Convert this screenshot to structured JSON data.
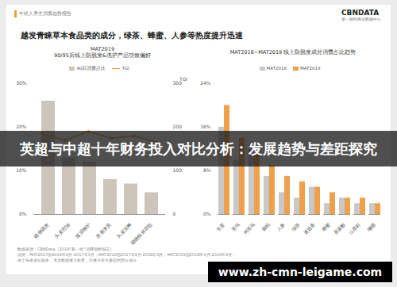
{
  "header": {
    "report": "年轻人养生消费趋势报告",
    "logo": "CBNDATA",
    "logo_sub": "第一财经商业数据中心"
  },
  "heading": "越发青睐草本食品类的成分，绿茶、蜂蜜、人参等热度提升迅速",
  "chart_data": [
    {
      "type": "bar",
      "title": "MAT2019",
      "subtitle": "90/95后线上防脱发&洗护产品功效偏好",
      "categories": [
        "植物固发",
        "头皮控油",
        "滋润修护",
        "改善发质",
        "头皮清爽",
        "植物精粹萃取"
      ],
      "series": [
        {
          "name": "90后消费占比",
          "type": "bar",
          "color": "#cdc5b9",
          "values": [
            26,
            13,
            12,
            8,
            7,
            5
          ]
        },
        {
          "name": "TGI",
          "type": "line",
          "axis": "y2",
          "color": "#e9a03b",
          "marker": "circle",
          "values": [
            185,
            170,
            190,
            175,
            180,
            165
          ]
        }
      ],
      "ylim": [
        0,
        30
      ],
      "yticks": [
        {
          "value": 0,
          "label": "0%"
        },
        {
          "value": 10,
          "label": "10%"
        },
        {
          "value": 20,
          "label": "20%"
        },
        {
          "value": 30,
          "label": "30%"
        }
      ],
      "y2lim": [
        0,
        300
      ],
      "y2ticks": [
        0,
        100,
        200,
        300
      ],
      "y2_label": "TGI",
      "legend": "top"
    },
    {
      "type": "bar",
      "title": "MAT2018~MAT2019 线上防脱发成分消费占比趋势",
      "categories": [
        "生姜",
        "首乌",
        "何首乌",
        "侧柏",
        "人参",
        "绿茶",
        "迷迭香",
        "蜂蜜",
        "茶多酚",
        "山茶籽",
        "橄榄"
      ],
      "series": [
        {
          "name": "MAT2018",
          "color": "#c8c8c8",
          "values": [
            16,
            10,
            12,
            7,
            4,
            3,
            5,
            2,
            3,
            2,
            2
          ]
        },
        {
          "name": "MAT2019",
          "color": "#f0a04b",
          "values": [
            20,
            14,
            11,
            9,
            7,
            6,
            5,
            4,
            3,
            3,
            2
          ]
        }
      ],
      "ylim": [
        0,
        24
      ],
      "yticks": [
        {
          "value": 0,
          "label": "0%"
        },
        {
          "value": 8,
          "label": "8%"
        },
        {
          "value": 16,
          "label": "16%"
        },
        {
          "value": 24,
          "label": "24%"
        }
      ],
      "legend": "top"
    }
  ],
  "footer": [
    "数据来源：CBNData《2019“新一线”消费洞察报告》",
    "说明：MAT2017指2016年4月-2017年3月；MAT2018指2017年4月-2018年3月；MAT2019指2018年4月-2019年3月；",
    "由于头发成分较多，考虑数据展示效果，仅展示排名靠前的部分成分"
  ],
  "overlay": {
    "title": "英超与中超十年财务投入对比分析：发展趋势与差距探究",
    "url": "www.zh-cmn-leigame.com"
  }
}
